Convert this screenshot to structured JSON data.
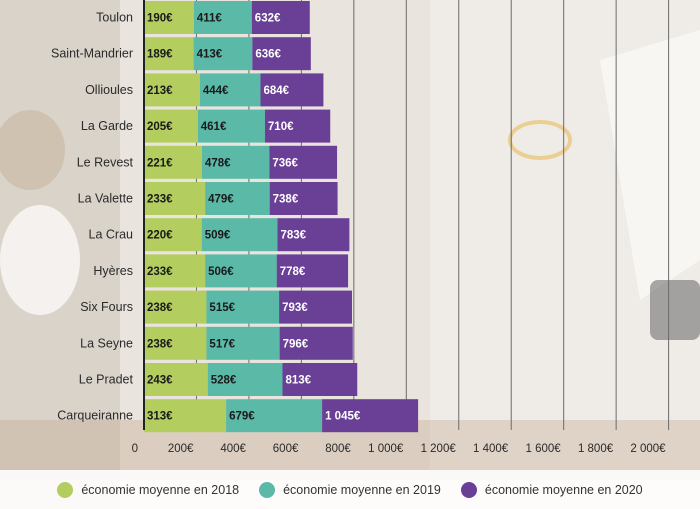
{
  "chart_data": {
    "type": "bar",
    "orientation": "horizontal",
    "stacked": true,
    "title": "",
    "xlabel": "",
    "ylabel": "",
    "categories": [
      "Toulon",
      "Saint-Mandrier",
      "Ollioules",
      "La Garde",
      "Le Revest",
      "La Valette",
      "La Crau",
      "Hyères",
      "Six Fours",
      "La Seyne",
      "Le Pradet",
      "Carqueiranne"
    ],
    "series": [
      {
        "name": "économie moyenne en 2018",
        "color": "#b3cd5f",
        "values": [
          190,
          189,
          213,
          205,
          221,
          233,
          220,
          233,
          238,
          238,
          243,
          313
        ],
        "labels": [
          "190€",
          "189€",
          "213€",
          "205€",
          "221€",
          "233€",
          "220€",
          "233€",
          "238€",
          "238€",
          "243€",
          "313€"
        ]
      },
      {
        "name": "économie moyenne en 2019",
        "color": "#5bb9a8",
        "values": [
          411,
          413,
          444,
          461,
          478,
          479,
          509,
          506,
          515,
          517,
          528,
          679
        ],
        "labels": [
          "411€",
          "413€",
          "444€",
          "461€",
          "478€",
          "479€",
          "509€",
          "506€",
          "515€",
          "517€",
          "528€",
          "679€"
        ]
      },
      {
        "name": "économie moyenne en 2020",
        "color": "#6a3f96",
        "values": [
          632,
          636,
          684,
          710,
          736,
          738,
          783,
          778,
          793,
          796,
          813,
          1045
        ],
        "labels": [
          "632€",
          "636€",
          "684€",
          "710€",
          "736€",
          "738€",
          "783€",
          "778€",
          "793€",
          "796€",
          "813€",
          "1 045€"
        ]
      }
    ],
    "xlim": [
      0,
      2200
    ],
    "xticks": [
      0,
      200,
      400,
      600,
      800,
      1000,
      1200,
      1400,
      1600,
      1800,
      2000
    ],
    "xtick_labels": [
      "0",
      "200€",
      "400€",
      "600€",
      "800€",
      "1 000€",
      "1 200€",
      "1 400€",
      "1 600€",
      "1 800€",
      "2 000€"
    ],
    "grid": true,
    "legend_position": "bottom"
  },
  "legend": {
    "items": [
      "économie moyenne en 2018",
      "économie moyenne en 2019",
      "économie moyenne en 2020"
    ],
    "colors": [
      "#b3cd5f",
      "#5bb9a8",
      "#6a3f96"
    ]
  }
}
